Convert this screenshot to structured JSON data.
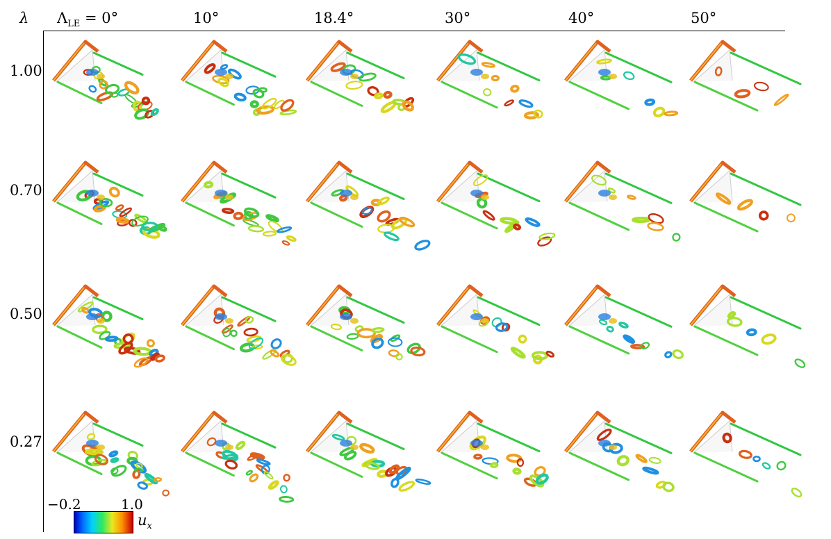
{
  "header": {
    "row_param": "λ",
    "first_col_prefix": "Λ",
    "first_col_sub": "LE",
    "first_col_eq": " = 0°",
    "columns": [
      "10°",
      "18.4°",
      "30°",
      "40°",
      "50°"
    ]
  },
  "rows": [
    "1.00",
    "0.70",
    "0.50",
    "0.27"
  ],
  "colorbar": {
    "min": "−0.2",
    "max": "1.0",
    "variable": "u",
    "variable_sub": "x"
  },
  "colors": {
    "low": "#0000c8",
    "mid": "#30e860",
    "high": "#c80000",
    "edge": "#e06020"
  }
}
